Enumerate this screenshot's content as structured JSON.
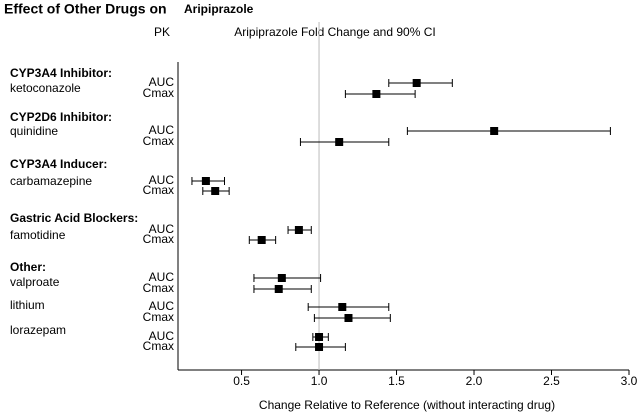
{
  "chart_data": {
    "type": "forest",
    "title": "Effect of Other Drugs on",
    "title_drug": "Aripiprazole",
    "pk_header": "PK",
    "plot_header": "Aripiprazole Fold Change and 90% CI",
    "x_label": "Change Relative to Reference (without interacting drug)",
    "xlim": [
      0.09,
      3.0
    ],
    "xticks": [
      0.5,
      {
        "value": 1.0,
        "label": "1.0"
      },
      1.5,
      {
        "value": 2.0,
        "label": "2.0"
      },
      2.5,
      {
        "value": 3.0,
        "label": "3.0"
      }
    ],
    "reference": 1.0,
    "color": "#000000",
    "groups": [
      {
        "name": "CYP3A4 Inhibitor:",
        "drugs": [
          {
            "name": "ketoconazole",
            "rows": [
              {
                "pk": "AUC",
                "value": 1.63,
                "lower": 1.45,
                "upper": 1.86
              },
              {
                "pk": "Cmax",
                "value": 1.37,
                "lower": 1.17,
                "upper": 1.62
              }
            ]
          }
        ]
      },
      {
        "name": "CYP2D6 Inhibitor:",
        "drugs": [
          {
            "name": "quinidine",
            "rows": [
              {
                "pk": "AUC",
                "value": 2.13,
                "lower": 1.57,
                "upper": 2.88
              },
              {
                "pk": "Cmax",
                "value": 1.13,
                "lower": 0.88,
                "upper": 1.45
              }
            ]
          }
        ]
      },
      {
        "name": "CYP3A4 Inducer:",
        "drugs": [
          {
            "name": "carbamazepine",
            "rows": [
              {
                "pk": "AUC",
                "value": 0.27,
                "lower": 0.18,
                "upper": 0.39
              },
              {
                "pk": "Cmax",
                "value": 0.33,
                "lower": 0.25,
                "upper": 0.42
              }
            ]
          }
        ]
      },
      {
        "name": "Gastric Acid Blockers:",
        "drugs": [
          {
            "name": "famotidine",
            "rows": [
              {
                "pk": "AUC",
                "value": 0.87,
                "lower": 0.8,
                "upper": 0.95
              },
              {
                "pk": "Cmax",
                "value": 0.63,
                "lower": 0.55,
                "upper": 0.72
              }
            ]
          }
        ]
      },
      {
        "name": "Other:",
        "drugs": [
          {
            "name": "valproate",
            "rows": [
              {
                "pk": "AUC",
                "value": 0.76,
                "lower": 0.58,
                "upper": 1.01
              },
              {
                "pk": "Cmax",
                "value": 0.74,
                "lower": 0.58,
                "upper": 0.95
              }
            ]
          },
          {
            "name": "lithium",
            "rows": [
              {
                "pk": "AUC",
                "value": 1.15,
                "lower": 0.93,
                "upper": 1.45
              },
              {
                "pk": "Cmax",
                "value": 1.19,
                "lower": 0.97,
                "upper": 1.46
              }
            ]
          },
          {
            "name": "lorazepam",
            "rows": [
              {
                "pk": "AUC",
                "value": 1.0,
                "lower": 0.96,
                "upper": 1.06
              },
              {
                "pk": "Cmax",
                "value": 1.0,
                "lower": 0.85,
                "upper": 1.17
              }
            ]
          }
        ]
      }
    ]
  }
}
